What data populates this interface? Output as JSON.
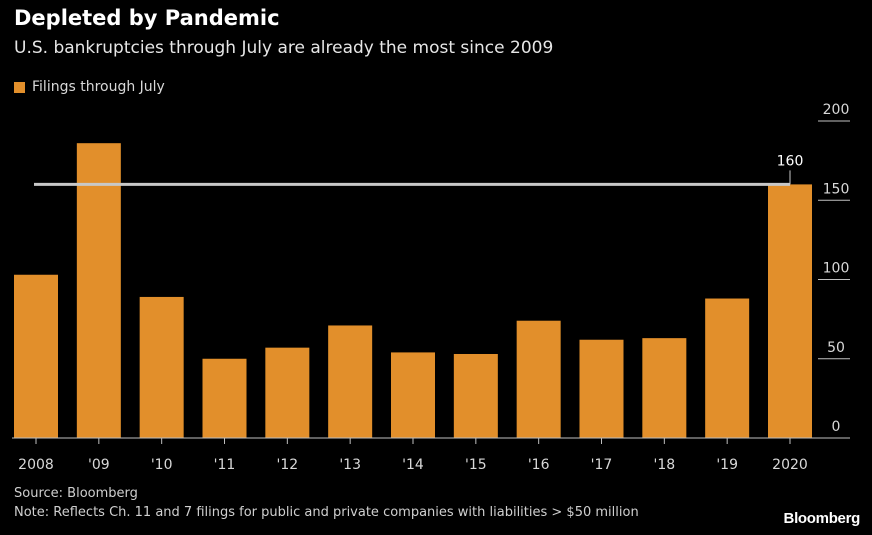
{
  "header": {
    "title": "Depleted by Pandemic",
    "subtitle": "U.S. bankruptcies through July are already the most since 2009"
  },
  "legend": {
    "label": "Filings through July"
  },
  "footer": {
    "source": "Source: Bloomberg",
    "note": "Note: Reflects Ch. 11 and 7 filings for public and private companies with liabilities > $50 million",
    "brand": "Bloomberg"
  },
  "colors": {
    "background": "#000000",
    "bar": "#e28f2b",
    "reference_line": "#c8c8c8",
    "axis": "#bfbfbf"
  },
  "chart_data": {
    "type": "bar",
    "categories": [
      "2008",
      "'09",
      "'10",
      "'11",
      "'12",
      "'13",
      "'14",
      "'15",
      "'16",
      "'17",
      "'18",
      "'19",
      "2020"
    ],
    "series": [
      {
        "name": "Filings through July",
        "values": [
          103,
          186,
          89,
          50,
          57,
          71,
          54,
          53,
          74,
          62,
          63,
          88,
          160
        ]
      }
    ],
    "reference_line": {
      "value": 160,
      "label": "160"
    },
    "ylim": [
      0,
      200
    ],
    "yticks": [
      0,
      50,
      100,
      150,
      200
    ],
    "y_axis_side": "right",
    "grid": false,
    "legend_position": "top-left"
  }
}
